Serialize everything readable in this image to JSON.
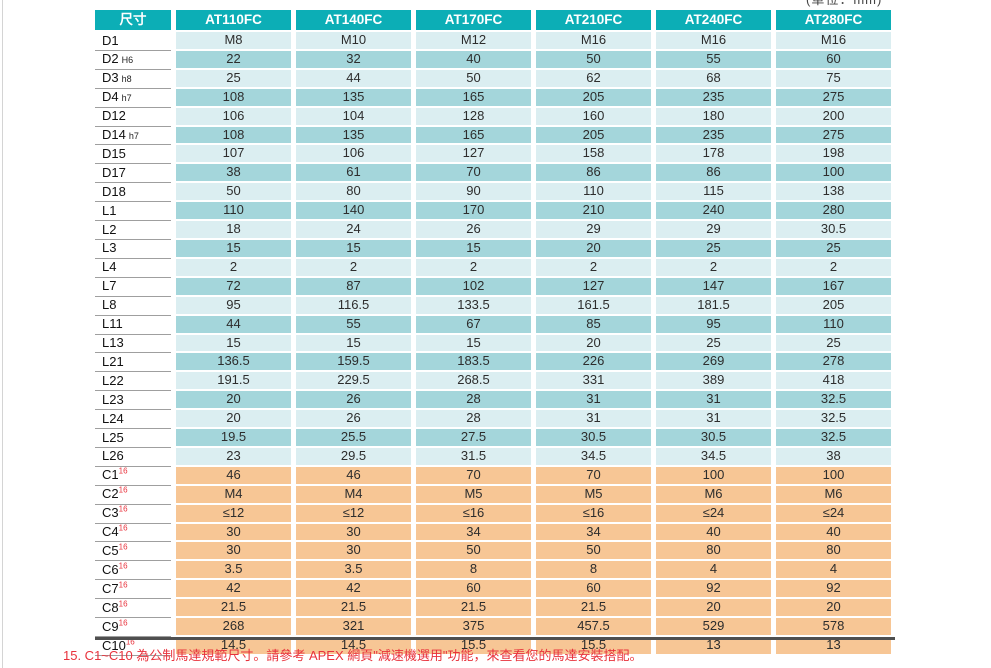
{
  "unit_note": "(單位：mm)",
  "footnote": "15. C1~C10 為公制馬達規範尺寸。請參考 APEX 網頁\"減速機選用\"功能，來查看您的馬達安裝搭配。",
  "colors": {
    "header_teal": "#0caeb6",
    "row_light": "#dbeef1",
    "row_dark": "#a4d6db",
    "row_orange": "#f7c695",
    "note_red": "#e8323c",
    "bottom_border": "#4f4f4f"
  },
  "table": {
    "headers": [
      "尺寸",
      "AT110FC",
      "AT140FC",
      "AT170FC",
      "AT210FC",
      "AT240FC",
      "AT280FC"
    ],
    "rows": [
      {
        "label": "D1",
        "values": [
          "M8",
          "M10",
          "M12",
          "M16",
          "M16",
          "M16"
        ]
      },
      {
        "label": "D2",
        "suffix": "H6",
        "values": [
          "22",
          "32",
          "40",
          "50",
          "55",
          "60"
        ]
      },
      {
        "label": "D3",
        "suffix": "h8",
        "values": [
          "25",
          "44",
          "50",
          "62",
          "68",
          "75"
        ]
      },
      {
        "label": "D4",
        "suffix": "h7",
        "values": [
          "108",
          "135",
          "165",
          "205",
          "235",
          "275"
        ]
      },
      {
        "label": "D12",
        "values": [
          "106",
          "104",
          "128",
          "160",
          "180",
          "200"
        ]
      },
      {
        "label": "D14",
        "suffix": "h7",
        "values": [
          "108",
          "135",
          "165",
          "205",
          "235",
          "275"
        ]
      },
      {
        "label": "D15",
        "values": [
          "107",
          "106",
          "127",
          "158",
          "178",
          "198"
        ]
      },
      {
        "label": "D17",
        "values": [
          "38",
          "61",
          "70",
          "86",
          "86",
          "100"
        ]
      },
      {
        "label": "D18",
        "values": [
          "50",
          "80",
          "90",
          "110",
          "115",
          "138"
        ]
      },
      {
        "label": "L1",
        "values": [
          "110",
          "140",
          "170",
          "210",
          "240",
          "280"
        ]
      },
      {
        "label": "L2",
        "values": [
          "18",
          "24",
          "26",
          "29",
          "29",
          "30.5"
        ]
      },
      {
        "label": "L3",
        "values": [
          "15",
          "15",
          "15",
          "20",
          "25",
          "25"
        ]
      },
      {
        "label": "L4",
        "values": [
          "2",
          "2",
          "2",
          "2",
          "2",
          "2"
        ]
      },
      {
        "label": "L7",
        "values": [
          "72",
          "87",
          "102",
          "127",
          "147",
          "167"
        ]
      },
      {
        "label": "L8",
        "values": [
          "95",
          "116.5",
          "133.5",
          "161.5",
          "181.5",
          "205"
        ]
      },
      {
        "label": "L11",
        "values": [
          "44",
          "55",
          "67",
          "85",
          "95",
          "110"
        ]
      },
      {
        "label": "L13",
        "values": [
          "15",
          "15",
          "15",
          "20",
          "25",
          "25"
        ]
      },
      {
        "label": "L21",
        "values": [
          "136.5",
          "159.5",
          "183.5",
          "226",
          "269",
          "278"
        ]
      },
      {
        "label": "L22",
        "values": [
          "191.5",
          "229.5",
          "268.5",
          "331",
          "389",
          "418"
        ]
      },
      {
        "label": "L23",
        "values": [
          "20",
          "26",
          "28",
          "31",
          "31",
          "32.5"
        ]
      },
      {
        "label": "L24",
        "values": [
          "20",
          "26",
          "28",
          "31",
          "31",
          "32.5"
        ]
      },
      {
        "label": "L25",
        "values": [
          "19.5",
          "25.5",
          "27.5",
          "30.5",
          "30.5",
          "32.5"
        ]
      },
      {
        "label": "L26",
        "values": [
          "23",
          "29.5",
          "31.5",
          "34.5",
          "34.5",
          "38"
        ]
      },
      {
        "label": "C1",
        "sup": "16",
        "values": [
          "46",
          "46",
          "70",
          "70",
          "100",
          "100"
        ]
      },
      {
        "label": "C2",
        "sup": "16",
        "values": [
          "M4",
          "M4",
          "M5",
          "M5",
          "M6",
          "M6"
        ]
      },
      {
        "label": "C3",
        "sup": "16",
        "values": [
          "≤12",
          "≤12",
          "≤16",
          "≤16",
          "≤24",
          "≤24"
        ]
      },
      {
        "label": "C4",
        "sup": "16",
        "values": [
          "30",
          "30",
          "34",
          "34",
          "40",
          "40"
        ]
      },
      {
        "label": "C5",
        "sup": "16",
        "values": [
          "30",
          "30",
          "50",
          "50",
          "80",
          "80"
        ]
      },
      {
        "label": "C6",
        "sup": "16",
        "values": [
          "3.5",
          "3.5",
          "8",
          "8",
          "4",
          "4"
        ]
      },
      {
        "label": "C7",
        "sup": "16",
        "values": [
          "42",
          "42",
          "60",
          "60",
          "92",
          "92"
        ]
      },
      {
        "label": "C8",
        "sup": "16",
        "values": [
          "21.5",
          "21.5",
          "21.5",
          "21.5",
          "20",
          "20"
        ]
      },
      {
        "label": "C9",
        "sup": "16",
        "values": [
          "268",
          "321",
          "375",
          "457.5",
          "529",
          "578"
        ]
      },
      {
        "label": "C10",
        "sup": "16",
        "values": [
          "14.5",
          "14.5",
          "15.5",
          "15.5",
          "13",
          "13"
        ]
      }
    ]
  }
}
